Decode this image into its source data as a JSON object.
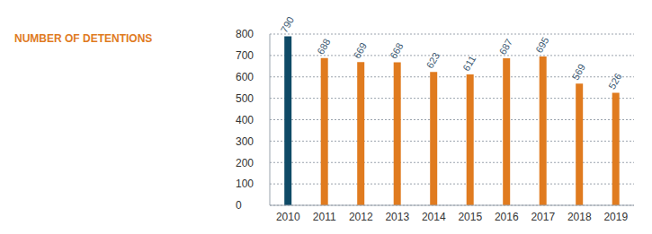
{
  "chart_data": {
    "type": "bar",
    "title": "NUMBER OF DETENTIONS",
    "categories": [
      "2010",
      "2011",
      "2012",
      "2013",
      "2014",
      "2015",
      "2016",
      "2017",
      "2018",
      "2019"
    ],
    "values": [
      790,
      688,
      669,
      668,
      623,
      611,
      687,
      695,
      569,
      526
    ],
    "colors": [
      "#0f4a66",
      "#e07b1f",
      "#e07b1f",
      "#e07b1f",
      "#e07b1f",
      "#e07b1f",
      "#e07b1f",
      "#e07b1f",
      "#e07b1f",
      "#e07b1f"
    ],
    "ylim": [
      0,
      800
    ],
    "yticks": [
      0,
      100,
      200,
      300,
      400,
      500,
      600,
      700,
      800
    ],
    "grid": true,
    "data_labels": true
  }
}
